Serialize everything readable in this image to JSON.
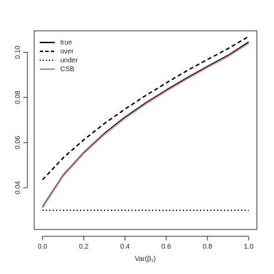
{
  "chart_data": {
    "type": "line",
    "title": "",
    "xlabel": "Var(β₁)",
    "ylabel": "",
    "xlim": [
      -0.04,
      1.04
    ],
    "ylim": [
      0.0215,
      0.1095
    ],
    "xticks": [
      0.0,
      0.2,
      0.4,
      0.6,
      0.8,
      1.0
    ],
    "xtick_labels": [
      "0.0",
      "0.2",
      "0.4",
      "0.6",
      "0.8",
      "1.0"
    ],
    "yticks": [
      0.04,
      0.06,
      0.08,
      0.1
    ],
    "ytick_labels": [
      "0.04",
      "0.06",
      "0.08",
      "0.10"
    ],
    "grid": false,
    "legend_position": "top-left",
    "x": [
      0.0,
      0.1,
      0.2,
      0.3,
      0.4,
      0.5,
      0.6,
      0.7,
      0.8,
      0.9,
      1.0
    ],
    "series": [
      {
        "name": "true",
        "style": "solid",
        "color": "#000000",
        "values": [
          0.0315,
          0.0455,
          0.0555,
          0.064,
          0.0712,
          0.0775,
          0.0832,
          0.0886,
          0.0937,
          0.0986,
          0.1045
        ]
      },
      {
        "name": "over",
        "style": "dashed",
        "color": "#000000",
        "values": [
          0.0435,
          0.0532,
          0.0612,
          0.0684,
          0.0748,
          0.0808,
          0.0864,
          0.0918,
          0.0968,
          0.1016,
          0.107
        ]
      },
      {
        "name": "under",
        "style": "dotted",
        "color": "#000000",
        "values": [
          0.03,
          0.03,
          0.03,
          0.03,
          0.03,
          0.03,
          0.03,
          0.03,
          0.03,
          0.03,
          0.03
        ]
      },
      {
        "name": "CSB",
        "style": "solid",
        "color": "#c17c8a",
        "values": [
          0.0312,
          0.0452,
          0.0552,
          0.0636,
          0.0708,
          0.0771,
          0.0828,
          0.0882,
          0.0933,
          0.0982,
          0.104
        ]
      }
    ]
  }
}
